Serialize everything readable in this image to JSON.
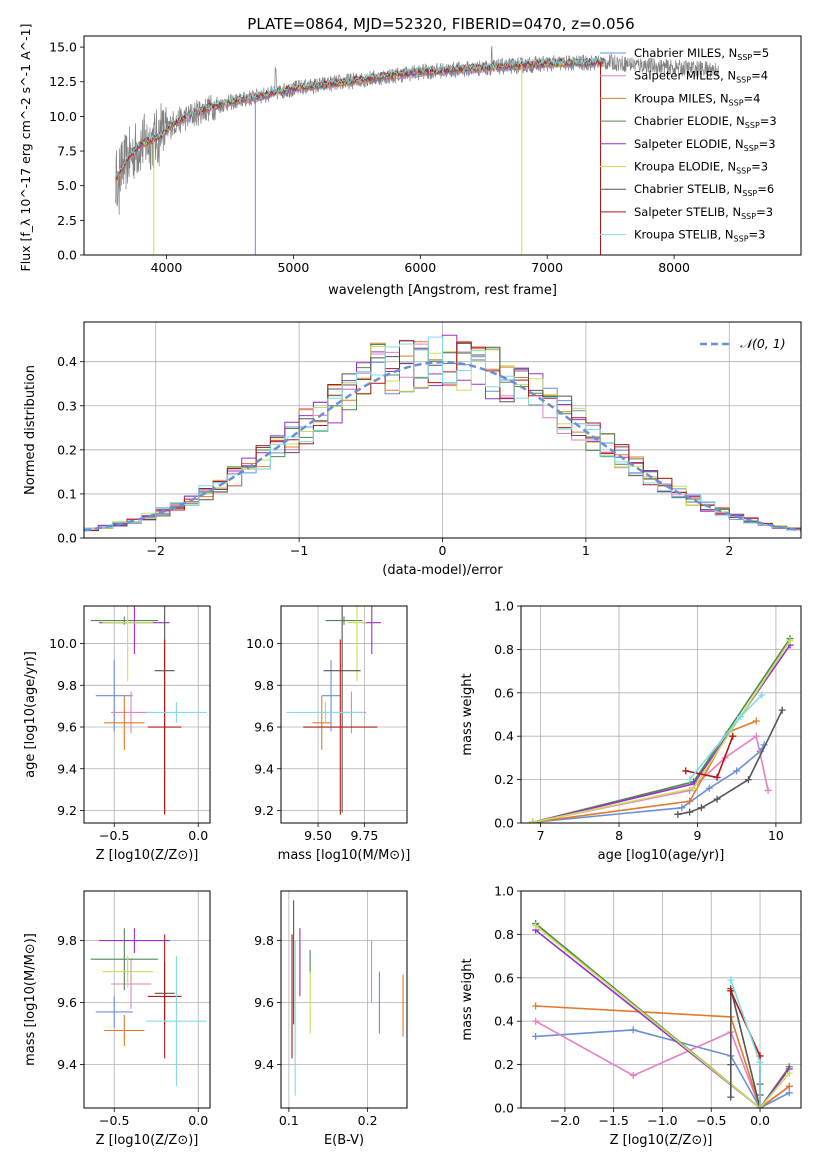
{
  "figure": {
    "title": "PLATE=0864, MJD=52320, FIBERID=0470, z=0.056"
  },
  "colors": {
    "Chabrier MILES": "#6a8fd8",
    "Salpeter MILES": "#e77fc0",
    "Kroupa MILES": "#e07b2c",
    "Chabrier ELODIE": "#4e8a4e",
    "Salpeter ELODIE": "#9b30c8",
    "Kroupa ELODIE": "#c8e05a",
    "Chabrier STELIB": "#555555",
    "Salpeter STELIB": "#b01818",
    "Kroupa STELIB": "#7fdde0"
  },
  "chart_data": [
    {
      "id": "spectrum",
      "type": "line",
      "xlabel": "wavelength [Angstrom, rest frame]",
      "ylabel": "Flux [f_λ 10^-17 erg cm^-2 s^-1 A^-1]",
      "xlim": [
        3350,
        9000
      ],
      "ylim": [
        0,
        15.8
      ],
      "xticks": [
        4000,
        5000,
        6000,
        7000,
        8000
      ],
      "yticks": [
        0.0,
        2.5,
        5.0,
        7.5,
        10.0,
        12.5,
        15.0
      ],
      "ytick_labels": [
        "0.0",
        "2.5",
        "5.0",
        "7.5",
        "10.0",
        "12.5",
        "15.0"
      ],
      "legend_position": "right",
      "legend": [
        {
          "label": "Chabrier MILES, N",
          "sub": "SSP",
          "tail": "=5",
          "color_key": "Chabrier MILES"
        },
        {
          "label": "Salpeter MILES, N",
          "sub": "SSP",
          "tail": "=4",
          "color_key": "Salpeter MILES"
        },
        {
          "label": "Kroupa MILES, N",
          "sub": "SSP",
          "tail": "=4",
          "color_key": "Kroupa MILES"
        },
        {
          "label": "Chabrier ELODIE, N",
          "sub": "SSP",
          "tail": "=3",
          "color_key": "Chabrier ELODIE"
        },
        {
          "label": "Salpeter ELODIE, N",
          "sub": "SSP",
          "tail": "=3",
          "color_key": "Salpeter ELODIE"
        },
        {
          "label": "Kroupa ELODIE, N",
          "sub": "SSP",
          "tail": "=3",
          "color_key": "Kroupa ELODIE"
        },
        {
          "label": "Chabrier STELIB, N",
          "sub": "SSP",
          "tail": "=6",
          "color_key": "Chabrier STELIB"
        },
        {
          "label": "Salpeter STELIB, N",
          "sub": "SSP",
          "tail": "=3",
          "color_key": "Salpeter STELIB"
        },
        {
          "label": "Kroupa STELIB, N",
          "sub": "SSP",
          "tail": "=3",
          "color_key": "Kroupa STELIB"
        }
      ],
      "data_color": "#808080",
      "continuum_anchors": [
        [
          3600,
          5.5
        ],
        [
          3700,
          7.0
        ],
        [
          3800,
          8.0
        ],
        [
          3950,
          8.5
        ],
        [
          4050,
          9.5
        ],
        [
          4300,
          10.5
        ],
        [
          4500,
          11.0
        ],
        [
          5000,
          12.0
        ],
        [
          5500,
          12.6
        ],
        [
          6000,
          13.2
        ],
        [
          6500,
          13.5
        ],
        [
          7000,
          13.8
        ],
        [
          7500,
          13.9
        ],
        [
          8000,
          13.5
        ],
        [
          8300,
          13.4
        ]
      ],
      "model_max_x": 7450,
      "observed_max_x": 8350,
      "drop_features": [
        [
          3900,
          "Kroupa ELODIE"
        ],
        [
          4700,
          "Chabrier MILES"
        ],
        [
          6800,
          "Kroupa ELODIE"
        ],
        [
          7420,
          "Salpeter STELIB"
        ]
      ]
    },
    {
      "id": "residuals",
      "type": "histogram",
      "xlabel": "(data-model)/error",
      "ylabel": "Normed distribution",
      "xlim": [
        -2.5,
        2.5
      ],
      "ylim": [
        0,
        0.49
      ],
      "xticks": [
        -2,
        -1,
        0,
        1,
        2
      ],
      "xtick_labels": [
        "−2",
        "−1",
        "0",
        "1",
        "2"
      ],
      "yticks": [
        0.0,
        0.1,
        0.2,
        0.3,
        0.4
      ],
      "ytick_labels": [
        "0.0",
        "0.1",
        "0.2",
        "0.3",
        "0.4"
      ],
      "bin_width": 0.1,
      "gaussian": {
        "label": "𝒩(0, 1)",
        "color": "#6a8fd8",
        "mean": 0,
        "sigma": 1
      },
      "legend_position": "top-right"
    },
    {
      "id": "age-vs-Z",
      "type": "errorbar",
      "xlabel": "Z [log10(Z/Z⊙)]",
      "ylabel": "age [log10(age/yr)]",
      "xlim": [
        -0.68,
        0.07
      ],
      "ylim": [
        9.14,
        10.18
      ],
      "xticks": [
        -0.5,
        0.0
      ],
      "xtick_labels": [
        "−0.5",
        "0.0"
      ],
      "yticks": [
        9.2,
        9.4,
        9.6,
        9.8,
        10.0
      ],
      "ytick_labels": [
        "9.2",
        "9.4",
        "9.6",
        "9.8",
        "10.0"
      ],
      "points": [
        {
          "s": "Chabrier MILES",
          "x": -0.5,
          "y": 9.75,
          "xerr": 0.11,
          "yerr": 0.17
        },
        {
          "s": "Salpeter MILES",
          "x": -0.4,
          "y": 9.67,
          "xerr": 0.12,
          "yerr": 0.1
        },
        {
          "s": "Kroupa MILES",
          "x": -0.44,
          "y": 9.62,
          "xerr": 0.12,
          "yerr": 0.13
        },
        {
          "s": "Chabrier ELODIE",
          "x": -0.44,
          "y": 10.11,
          "xerr": 0.2,
          "yerr": 0.02
        },
        {
          "s": "Salpeter ELODIE",
          "x": -0.38,
          "y": 10.1,
          "xerr": 0.21,
          "yerr": 0.15
        },
        {
          "s": "Kroupa ELODIE",
          "x": -0.42,
          "y": 10.1,
          "xerr": 0.15,
          "yerr": 0.28
        },
        {
          "s": "Chabrier STELIB",
          "x": -0.2,
          "y": 9.87,
          "xerr": 0.06,
          "yerr": 0.68
        },
        {
          "s": "Salpeter STELIB",
          "x": -0.2,
          "y": 9.6,
          "xerr": 0.1,
          "yerr": 0.42
        },
        {
          "s": "Kroupa STELIB",
          "x": -0.13,
          "y": 9.67,
          "xerr": 0.18,
          "yerr": 0.05
        }
      ]
    },
    {
      "id": "age-vs-mass",
      "type": "errorbar",
      "xlabel": "mass [log10(M/M⊙)]",
      "ylabel": "",
      "xlim": [
        9.3,
        9.98
      ],
      "ylim": [
        9.14,
        10.18
      ],
      "xticks": [
        9.5,
        9.75
      ],
      "xtick_labels": [
        "9.50",
        "9.75"
      ],
      "yticks": [
        9.2,
        9.4,
        9.6,
        9.8,
        10.0
      ],
      "ytick_labels": [
        "9.2",
        "9.4",
        "9.6",
        "9.8",
        "10.0"
      ],
      "points": [
        {
          "s": "Chabrier MILES",
          "x": 9.57,
          "y": 9.75,
          "xerr": 0.05,
          "yerr": 0.17
        },
        {
          "s": "Salpeter MILES",
          "x": 9.68,
          "y": 9.67,
          "xerr": 0.08,
          "yerr": 0.1
        },
        {
          "s": "Kroupa MILES",
          "x": 9.52,
          "y": 9.62,
          "xerr": 0.05,
          "yerr": 0.13
        },
        {
          "s": "Chabrier ELODIE",
          "x": 9.64,
          "y": 10.11,
          "xerr": 0.1,
          "yerr": 0.02
        },
        {
          "s": "Salpeter ELODIE",
          "x": 9.79,
          "y": 10.1,
          "xerr": 0.05,
          "yerr": 0.15
        },
        {
          "s": "Kroupa ELODIE",
          "x": 9.71,
          "y": 10.1,
          "xerr": 0.05,
          "yerr": 0.28
        },
        {
          "s": "Chabrier STELIB",
          "x": 9.63,
          "y": 9.87,
          "xerr": 0.1,
          "yerr": 0.68
        },
        {
          "s": "Salpeter STELIB",
          "x": 9.62,
          "y": 9.6,
          "xerr": 0.2,
          "yerr": 0.42
        },
        {
          "s": "Kroupa STELIB",
          "x": 9.54,
          "y": 9.67,
          "xerr": 0.21,
          "yerr": 0.05
        }
      ]
    },
    {
      "id": "mass-weight-vs-age",
      "type": "line",
      "xlabel": "age [log10(age/yr)]",
      "ylabel": "mass weight",
      "xlim": [
        6.75,
        10.32
      ],
      "ylim": [
        0,
        1.0
      ],
      "xticks": [
        7,
        8,
        9,
        10
      ],
      "xtick_labels": [
        "7",
        "8",
        "9",
        "10"
      ],
      "yticks": [
        0.0,
        0.2,
        0.4,
        0.6,
        0.8,
        1.0
      ],
      "ytick_labels": [
        "0.0",
        "0.2",
        "0.4",
        "0.6",
        "0.8",
        "1.0"
      ],
      "series": [
        {
          "s": "Chabrier MILES",
          "x": [
            6.9,
            8.8,
            9.15,
            9.5,
            9.8,
            9.85
          ],
          "y": [
            0.003,
            0.07,
            0.16,
            0.24,
            0.33,
            0.36
          ]
        },
        {
          "s": "Salpeter MILES",
          "x": [
            6.9,
            8.9,
            9.35,
            9.75,
            9.9
          ],
          "y": [
            0.003,
            0.15,
            0.3,
            0.4,
            0.15
          ]
        },
        {
          "s": "Kroupa MILES",
          "x": [
            6.9,
            8.9,
            9.4,
            9.75
          ],
          "y": [
            0.003,
            0.1,
            0.42,
            0.47
          ]
        },
        {
          "s": "Chabrier ELODIE",
          "x": [
            6.9,
            8.95,
            10.18
          ],
          "y": [
            0.003,
            0.19,
            0.85
          ]
        },
        {
          "s": "Salpeter ELODIE",
          "x": [
            6.9,
            8.95,
            10.18
          ],
          "y": [
            0.003,
            0.18,
            0.82
          ]
        },
        {
          "s": "Kroupa ELODIE",
          "x": [
            6.9,
            8.95,
            10.18
          ],
          "y": [
            0.003,
            0.16,
            0.84
          ]
        },
        {
          "s": "Chabrier STELIB",
          "x": [
            8.75,
            8.9,
            9.05,
            9.25,
            9.65,
            10.08
          ],
          "y": [
            0.04,
            0.05,
            0.07,
            0.11,
            0.2,
            0.52
          ]
        },
        {
          "s": "Salpeter STELIB",
          "x": [
            8.85,
            9.25,
            9.45
          ],
          "y": [
            0.24,
            0.21,
            0.4
          ]
        },
        {
          "s": "Kroupa STELIB",
          "x": [
            8.9,
            9.55,
            9.82
          ],
          "y": [
            0.2,
            0.49,
            0.59
          ]
        }
      ]
    },
    {
      "id": "mass-vs-Z",
      "type": "errorbar",
      "xlabel": "Z [log10(Z/Z⊙)]",
      "ylabel": "mass [log10(M/M⊙)]",
      "xlim": [
        -0.68,
        0.07
      ],
      "ylim": [
        9.26,
        9.96
      ],
      "xticks": [
        -0.5,
        0.0
      ],
      "xtick_labels": [
        "−0.5",
        "0.0"
      ],
      "yticks": [
        9.4,
        9.6,
        9.8
      ],
      "ytick_labels": [
        "9.4",
        "9.6",
        "9.8"
      ],
      "points": [
        {
          "s": "Chabrier MILES",
          "x": -0.5,
          "y": 9.57,
          "xerr": 0.11,
          "yerr": 0.05
        },
        {
          "s": "Salpeter MILES",
          "x": -0.4,
          "y": 9.66,
          "xerr": 0.12,
          "yerr": 0.08
        },
        {
          "s": "Kroupa MILES",
          "x": -0.44,
          "y": 9.51,
          "xerr": 0.12,
          "yerr": 0.05
        },
        {
          "s": "Chabrier ELODIE",
          "x": -0.44,
          "y": 9.74,
          "xerr": 0.2,
          "yerr": 0.1
        },
        {
          "s": "Salpeter ELODIE",
          "x": -0.38,
          "y": 9.8,
          "xerr": 0.21,
          "yerr": 0.04
        },
        {
          "s": "Kroupa ELODIE",
          "x": -0.42,
          "y": 9.7,
          "xerr": 0.15,
          "yerr": 0.05
        },
        {
          "s": "Chabrier STELIB",
          "x": -0.2,
          "y": 9.63,
          "xerr": 0.06,
          "yerr": 0.1
        },
        {
          "s": "Salpeter STELIB",
          "x": -0.2,
          "y": 9.62,
          "xerr": 0.1,
          "yerr": 0.2
        },
        {
          "s": "Kroupa STELIB",
          "x": -0.13,
          "y": 9.54,
          "xerr": 0.18,
          "yerr": 0.21
        }
      ]
    },
    {
      "id": "mass-vs-ebv",
      "type": "errorbar",
      "xlabel": "E(B-V)",
      "ylabel": "",
      "xlim": [
        0.09,
        0.25
      ],
      "ylim": [
        9.26,
        9.96
      ],
      "xticks": [
        0.1,
        0.2
      ],
      "xtick_labels": [
        "0.1",
        "0.2"
      ],
      "yticks": [
        9.4,
        9.6,
        9.8
      ],
      "ytick_labels": [
        "9.4",
        "9.6",
        "9.8"
      ],
      "points": [
        {
          "s": "Chabrier MILES",
          "x": 0.215,
          "y": 9.6,
          "xerr": 0,
          "yerr": 0.1
        },
        {
          "s": "Salpeter MILES",
          "x": 0.205,
          "y": 9.7,
          "xerr": 0,
          "yerr": 0.1
        },
        {
          "s": "Kroupa MILES",
          "x": 0.245,
          "y": 9.59,
          "xerr": 0,
          "yerr": 0.1
        },
        {
          "s": "Chabrier ELODIE",
          "x": 0.127,
          "y": 9.73,
          "xerr": 0,
          "yerr": 0.04
        },
        {
          "s": "Salpeter ELODIE",
          "x": 0.114,
          "y": 9.73,
          "xerr": 0,
          "yerr": 0.11
        },
        {
          "s": "Kroupa ELODIE",
          "x": 0.127,
          "y": 9.6,
          "xerr": 0,
          "yerr": 0.1
        },
        {
          "s": "Chabrier STELIB",
          "x": 0.106,
          "y": 9.73,
          "xerr": 0,
          "yerr": 0.2
        },
        {
          "s": "Salpeter STELIB",
          "x": 0.104,
          "y": 9.62,
          "xerr": 0,
          "yerr": 0.2
        },
        {
          "s": "Kroupa STELIB",
          "x": 0.108,
          "y": 9.55,
          "xerr": 0,
          "yerr": 0.25
        }
      ]
    },
    {
      "id": "mass-weight-vs-Z",
      "type": "line",
      "xlabel": "Z [log10(Z/Z⊙)]",
      "ylabel": "mass weight",
      "xlim": [
        -2.45,
        0.42
      ],
      "ylim": [
        0,
        1.0
      ],
      "xticks": [
        -2.0,
        -1.5,
        -1.0,
        -0.5,
        0.0
      ],
      "xtick_labels": [
        "−2.0",
        "−1.5",
        "−1.0",
        "−0.5",
        "0.0"
      ],
      "yticks": [
        0.0,
        0.2,
        0.4,
        0.6,
        0.8,
        1.0
      ],
      "ytick_labels": [
        "0.0",
        "0.2",
        "0.4",
        "0.6",
        "0.8",
        "1.0"
      ],
      "series": [
        {
          "s": "Chabrier MILES",
          "x": [
            -2.3,
            -1.3,
            -0.3,
            0.0,
            0.3
          ],
          "y": [
            0.33,
            0.36,
            0.24,
            0.0,
            0.07
          ]
        },
        {
          "s": "Salpeter MILES",
          "x": [
            -2.3,
            -1.3,
            -0.3,
            0.0,
            0.3
          ],
          "y": [
            0.4,
            0.15,
            0.35,
            0.0,
            0.1
          ]
        },
        {
          "s": "Kroupa MILES",
          "x": [
            -2.3,
            -0.3,
            0.0,
            0.3
          ],
          "y": [
            0.47,
            0.42,
            0.0,
            0.1
          ]
        },
        {
          "s": "Chabrier ELODIE",
          "x": [
            -2.3,
            0.0,
            0.3
          ],
          "y": [
            0.85,
            0.0,
            0.19
          ]
        },
        {
          "s": "Salpeter ELODIE",
          "x": [
            -2.3,
            0.0,
            0.3
          ],
          "y": [
            0.82,
            0.0,
            0.18
          ]
        },
        {
          "s": "Kroupa ELODIE",
          "x": [
            -2.3,
            0.0,
            0.3
          ],
          "y": [
            0.84,
            0.0,
            0.16
          ]
        },
        {
          "s": "Chabrier STELIB",
          "x": [
            -0.3,
            -0.3,
            -0.3,
            0.0,
            0.0,
            0.0
          ],
          "y": [
            0.05,
            0.2,
            0.55,
            0.0,
            0.06,
            0.11
          ]
        },
        {
          "s": "Salpeter STELIB",
          "x": [
            -0.3,
            0.0,
            0.0
          ],
          "y": [
            0.54,
            0.24,
            0.0
          ]
        },
        {
          "s": "Kroupa STELIB",
          "x": [
            -0.3,
            0.0,
            0.0
          ],
          "y": [
            0.59,
            0.21,
            0.0
          ]
        }
      ]
    }
  ]
}
